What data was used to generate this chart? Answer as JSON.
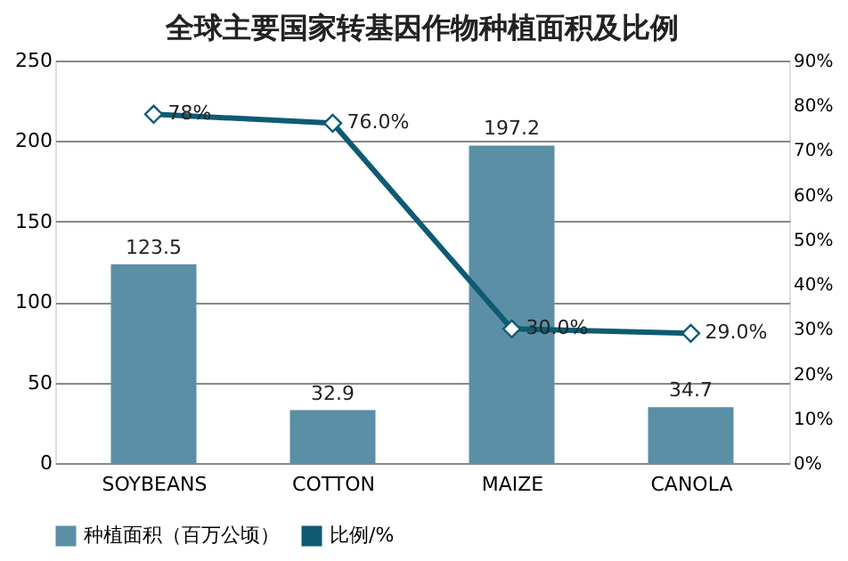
{
  "chart_data": {
    "type": "bar",
    "title": "全球主要国家转基因作物种植面积及比例",
    "categories": [
      "SOYBEANS",
      "COTTON",
      "MAIZE",
      "CANOLA"
    ],
    "series": [
      {
        "name": "种植面积（百万公顷）",
        "color": "#5b8fa6",
        "values": [
          123.5,
          32.9,
          197.2,
          34.7
        ],
        "value_labels": [
          "123.5",
          "32.9",
          "197.2",
          "34.7"
        ]
      },
      {
        "name": "比例/%",
        "type": "line",
        "axis": "y2",
        "color": "#0e5b73",
        "marker": "diamond",
        "values": [
          78,
          76,
          30,
          29
        ],
        "value_labels": [
          "78%",
          "76.0%",
          "30.0%",
          "29.0%"
        ]
      }
    ],
    "ylim": [
      0,
      250
    ],
    "yticks": [
      0,
      50,
      100,
      150,
      200,
      250
    ],
    "y2lim": [
      0,
      90
    ],
    "y2ticks": [
      {
        "value": 0,
        "label": "0%"
      },
      {
        "value": 10,
        "label": "10%"
      },
      {
        "value": 20,
        "label": "20%"
      },
      {
        "value": 30,
        "label": "30%"
      },
      {
        "value": 40,
        "label": "40%"
      },
      {
        "value": 50,
        "label": "50%"
      },
      {
        "value": 60,
        "label": "60%"
      },
      {
        "value": 70,
        "label": "70%"
      },
      {
        "value": 80,
        "label": "80%"
      },
      {
        "value": 90,
        "label": "90%"
      }
    ],
    "grid": "y",
    "legend": "bottom"
  }
}
